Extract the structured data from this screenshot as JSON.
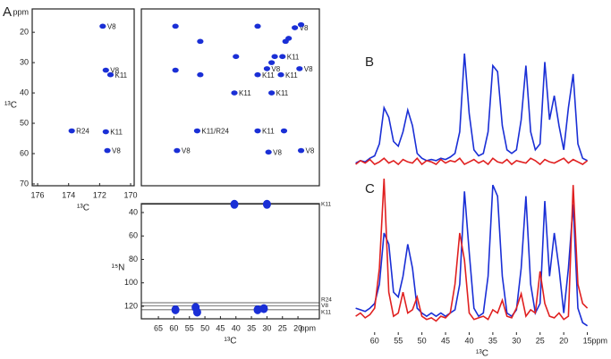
{
  "chart_data": [
    {
      "type": "scatter",
      "panel_label": "A",
      "x_label": "¹³C",
      "y_label": "¹³C",
      "y_unit": "ppm",
      "color": "#1a2fd6",
      "xlim": [
        176.35,
        169.77
      ],
      "ylim": [
        12.3,
        70.6
      ],
      "xticks": [
        176,
        174,
        172,
        170
      ],
      "yticks": [
        20,
        30,
        40,
        50,
        60,
        70
      ],
      "x": [
        171.8,
        171.6,
        171.3,
        173.8,
        171.6,
        171.5
      ],
      "y": [
        18,
        32.5,
        34,
        52.5,
        52.8,
        59
      ],
      "labels": [
        "V8",
        "V8",
        "K11",
        "R24",
        "K11",
        "V8"
      ]
    },
    {
      "type": "scatter",
      "color": "#1a2fd6",
      "xlim": [
        70.5,
        13.1
      ],
      "ylim": [
        12.3,
        70.6
      ],
      "x": [
        59.5,
        51.5,
        40,
        33,
        21,
        19,
        24,
        23,
        25,
        27.5,
        28.5,
        30,
        33,
        25.5,
        19.5,
        40.5,
        28.5,
        52.5,
        33,
        24.5,
        59,
        29.5,
        19,
        59.5,
        51.5
      ],
      "y": [
        18,
        23,
        28,
        18,
        18.5,
        17.5,
        23,
        22,
        28,
        28,
        30,
        32,
        34,
        34,
        32,
        40,
        40,
        52.5,
        52.5,
        52.5,
        59,
        59.5,
        59,
        32.5,
        34
      ],
      "labels": [
        null,
        null,
        null,
        null,
        "V8",
        null,
        null,
        null,
        "K11",
        null,
        null,
        "V8",
        "K11",
        "K11",
        "V8",
        "K11",
        "K11",
        "K11/R24",
        "K11",
        null,
        "V8",
        "V8",
        "V8",
        null,
        null
      ]
    },
    {
      "type": "scatter",
      "x_label": "¹³C",
      "x_unit": "ppm",
      "y_label": "¹⁵N",
      "color": "#1a2fd6",
      "xlim": [
        70.5,
        13.1
      ],
      "ylim": [
        32.4,
        130.7
      ],
      "xticks": [
        65,
        60,
        55,
        50,
        45,
        40,
        35,
        30,
        25,
        20
      ],
      "yticks": [
        40,
        60,
        80,
        100,
        120
      ],
      "x": [
        40.5,
        30,
        59.5,
        53,
        52.5,
        33,
        31
      ],
      "y": [
        33,
        33,
        123,
        121,
        125,
        123,
        122
      ],
      "ref_lines": {
        "values": [
          33,
          117,
          119.5,
          123
        ],
        "labels": [
          "K11",
          "R24",
          "V8",
          "K11"
        ]
      }
    },
    {
      "type": "line",
      "panel_label": "B",
      "xlim": [
        64.5,
        10
      ],
      "x": [
        64,
        63,
        62,
        61,
        60,
        59,
        58,
        57,
        56,
        55,
        54,
        53,
        52,
        51,
        50,
        49,
        48,
        47,
        46,
        45,
        44,
        43,
        42,
        41,
        40,
        39,
        38,
        37,
        36,
        35,
        34,
        33,
        32,
        31,
        30,
        29,
        28,
        27,
        26,
        25,
        24,
        23,
        22,
        21,
        20,
        19,
        18,
        17,
        16,
        15
      ],
      "series": [
        {
          "color": "#1a2fd6",
          "values": [
            4,
            6,
            5,
            8,
            10,
            20,
            50,
            42,
            22,
            18,
            30,
            48,
            35,
            12,
            8,
            6,
            7,
            6,
            8,
            7,
            9,
            12,
            30,
            95,
            45,
            15,
            10,
            12,
            30,
            85,
            80,
            35,
            15,
            12,
            15,
            40,
            85,
            30,
            15,
            20,
            88,
            40,
            60,
            35,
            15,
            50,
            78,
            20,
            8,
            6
          ]
        },
        {
          "color": "#e02020",
          "values": [
            3,
            6,
            4,
            7,
            3,
            5,
            8,
            4,
            6,
            3,
            7,
            5,
            4,
            8,
            3,
            6,
            5,
            3,
            7,
            4,
            6,
            5,
            8,
            3,
            5,
            7,
            4,
            6,
            3,
            8,
            5,
            4,
            7,
            3,
            6,
            5,
            4,
            8,
            6,
            3,
            7,
            5,
            4,
            6,
            8,
            4,
            7,
            5,
            3,
            6
          ]
        }
      ]
    },
    {
      "type": "line",
      "panel_label": "C",
      "x_label": "¹³C",
      "x_unit": "ppm",
      "xlim": [
        64.5,
        10
      ],
      "xticks": [
        60,
        55,
        50,
        45,
        40,
        35,
        30,
        25,
        20,
        15
      ],
      "x": [
        64,
        63,
        62,
        61,
        60,
        59,
        58,
        57,
        56,
        55,
        54,
        53,
        52,
        51,
        50,
        49,
        48,
        47,
        46,
        45,
        44,
        43,
        42,
        41,
        40,
        39,
        38,
        37,
        36,
        35,
        34,
        33,
        32,
        31,
        30,
        29,
        28,
        27,
        26,
        25,
        24,
        23,
        22,
        21,
        20,
        19,
        18,
        17,
        16,
        15
      ],
      "series": [
        {
          "color": "#1a2fd6",
          "values": [
            15,
            14,
            13,
            15,
            18,
            30,
            62,
            55,
            25,
            22,
            35,
            55,
            40,
            15,
            12,
            10,
            12,
            10,
            12,
            10,
            12,
            14,
            30,
            88,
            50,
            15,
            10,
            12,
            35,
            92,
            85,
            35,
            12,
            10,
            14,
            40,
            85,
            30,
            12,
            18,
            82,
            35,
            62,
            40,
            12,
            40,
            80,
            15,
            6,
            4
          ]
        },
        {
          "color": "#e02020",
          "values": [
            10,
            12,
            9,
            11,
            15,
            40,
            96,
            25,
            10,
            12,
            25,
            12,
            14,
            22,
            10,
            8,
            9,
            7,
            10,
            9,
            12,
            30,
            62,
            45,
            12,
            8,
            9,
            10,
            8,
            14,
            12,
            20,
            10,
            9,
            15,
            24,
            10,
            14,
            12,
            38,
            18,
            10,
            9,
            12,
            8,
            10,
            92,
            30,
            18,
            15
          ]
        }
      ]
    }
  ]
}
